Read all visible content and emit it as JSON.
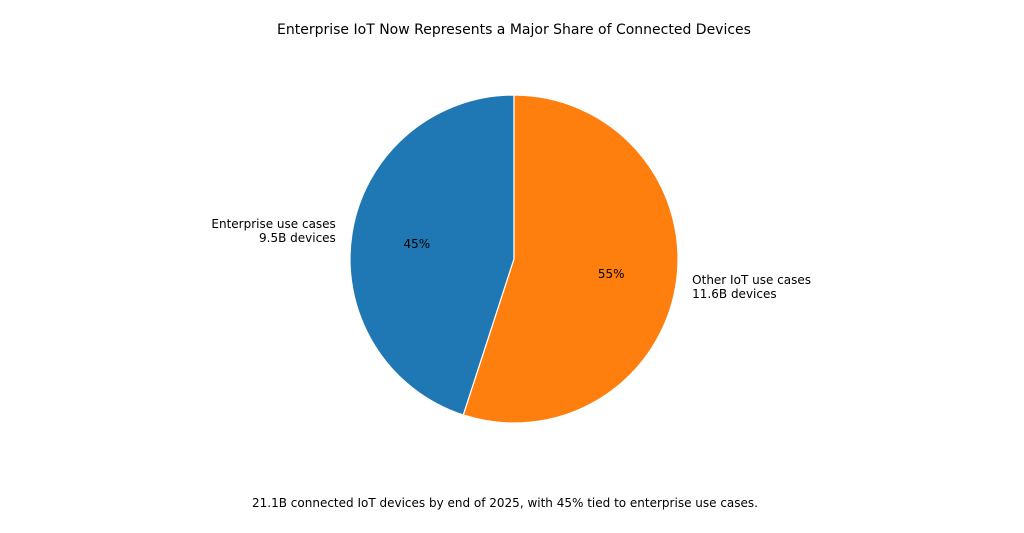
{
  "chart_data": {
    "type": "pie",
    "title": "Enterprise IoT Now Represents a Major Share of Connected Devices",
    "categories": [
      "Enterprise use cases\n9.5B devices",
      "Other IoT use cases\n11.6B devices"
    ],
    "values": [
      45,
      55
    ],
    "value_labels": [
      "45%",
      "55%"
    ],
    "colors": [
      "#1f77b4",
      "#ff7f0e"
    ],
    "caption": "21.1B connected IoT devices by end of 2025, with 45% tied to enterprise use cases."
  }
}
